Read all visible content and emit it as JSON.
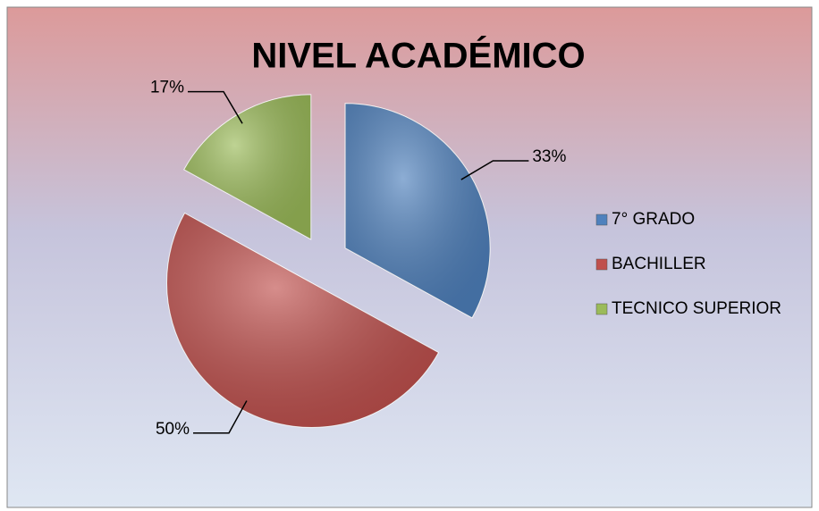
{
  "chart_data": {
    "type": "pie",
    "title": "NIVEL ACADÉMICO",
    "categories": [
      "7° GRADO",
      "BACHILLER",
      "TECNICO SUPERIOR"
    ],
    "values": [
      33,
      50,
      17
    ],
    "value_labels": [
      "33%",
      "50%",
      "17%"
    ],
    "colors": [
      "#4f81bd",
      "#c0504d",
      "#9bbb59"
    ],
    "legend": "right"
  }
}
